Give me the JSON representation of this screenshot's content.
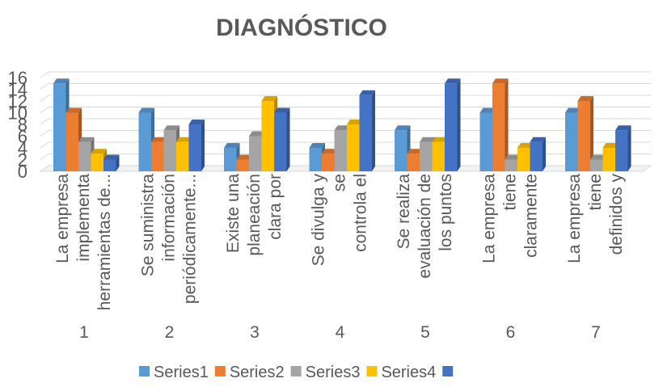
{
  "chart_data": {
    "type": "bar",
    "title": "DIAGNÓSTICO",
    "xlabel": "",
    "ylabel": "",
    "ylim": [
      0,
      16
    ],
    "yticks": [
      0,
      2,
      4,
      6,
      8,
      10,
      12,
      14,
      16
    ],
    "grid": true,
    "legend_position": "bottom",
    "categories": [
      "1",
      "2",
      "3",
      "4",
      "5",
      "6",
      "7"
    ],
    "category_labels": [
      [
        "La empresa",
        "implementa",
        "herramientas de..."
      ],
      [
        "Se suministra",
        "información",
        "periódicamente..."
      ],
      [
        "Existe una",
        "planeación",
        "clara por"
      ],
      [
        "Se divulga y",
        "se",
        "controla el"
      ],
      [
        "Se realiza",
        "evaluación de",
        "los puntos"
      ],
      [
        "La empresa",
        "tiene",
        "claramente"
      ],
      [
        "La empresa",
        "tiene",
        "definidos y"
      ]
    ],
    "series": [
      {
        "name": "Series1",
        "color": "#5B9BD5",
        "values": [
          15,
          10,
          4,
          4,
          7,
          10,
          10
        ]
      },
      {
        "name": "Series2",
        "color": "#ED7D31",
        "values": [
          10,
          5,
          2,
          3,
          3,
          15,
          12
        ]
      },
      {
        "name": "Series3",
        "color": "#A5A5A5",
        "values": [
          5,
          7,
          6,
          7,
          5,
          2,
          2
        ]
      },
      {
        "name": "Series4",
        "color": "#FFC000",
        "values": [
          3,
          5,
          12,
          8,
          5,
          4,
          4
        ]
      },
      {
        "name": "",
        "color": "#4472C4",
        "values": [
          2,
          8,
          10,
          13,
          15,
          5,
          7
        ]
      }
    ]
  }
}
